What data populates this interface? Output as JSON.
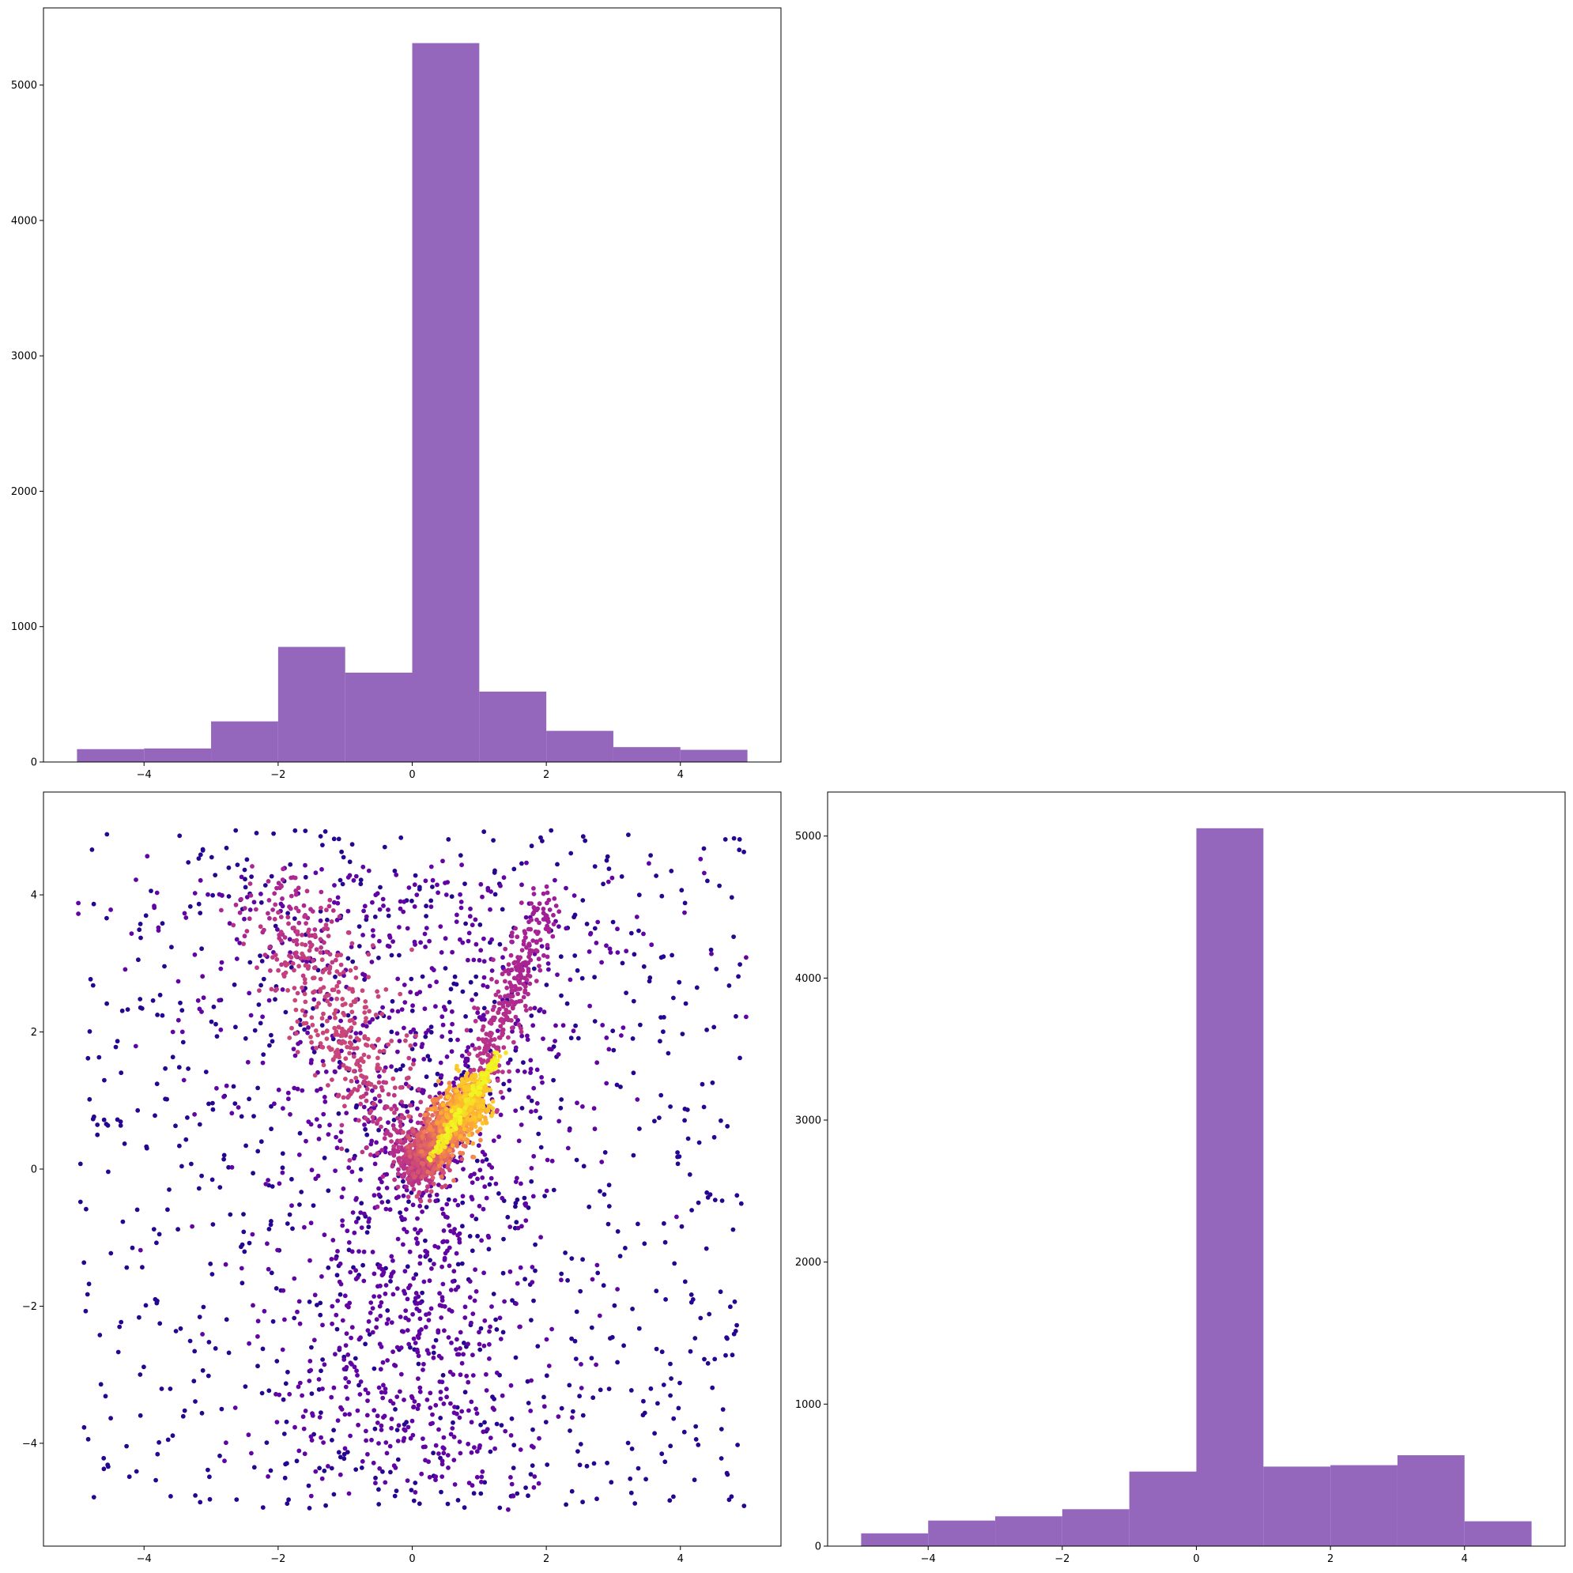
{
  "figure": {
    "bar_color": "#9467bd",
    "scatter_colormap": "plasma"
  },
  "chart_data": [
    {
      "type": "bar",
      "panel": "top-left",
      "bins": [
        [
          -5,
          -4
        ],
        [
          -4,
          -3
        ],
        [
          -3,
          -2
        ],
        [
          -2,
          -1
        ],
        [
          -1,
          0
        ],
        [
          0,
          1
        ],
        [
          1,
          2
        ],
        [
          2,
          3
        ],
        [
          3,
          4
        ],
        [
          4,
          5
        ]
      ],
      "values": [
        95,
        100,
        300,
        850,
        660,
        5310,
        520,
        230,
        110,
        90
      ],
      "xlim": [
        -5.5,
        5.5
      ],
      "ylim": [
        0,
        5570
      ],
      "xticks": [
        -4,
        -2,
        0,
        2,
        4
      ],
      "xtick_labels": [
        "−4",
        "−2",
        "0",
        "2",
        "4"
      ],
      "yticks": [
        0,
        1000,
        2000,
        3000,
        4000,
        5000
      ],
      "ytick_labels": [
        "0",
        "1000",
        "2000",
        "3000",
        "4000",
        "5000"
      ],
      "color": "#9467bd",
      "title": "",
      "xlabel": "",
      "ylabel": ""
    },
    {
      "type": "scatter",
      "panel": "bottom-left",
      "description_counts": {
        "uniform_background": 900,
        "core": 1300,
        "ridge": 180,
        "left_arm": 500,
        "right_arm": 320,
        "halo": 1200
      },
      "xlim": [
        -5.5,
        5.5
      ],
      "ylim": [
        -5.5,
        5.5
      ],
      "xticks": [
        -4,
        -2,
        0,
        2,
        4
      ],
      "xtick_labels": [
        "−4",
        "−2",
        "0",
        "2",
        "4"
      ],
      "yticks": [
        -4,
        -2,
        0,
        2,
        4
      ],
      "ytick_labels": [
        "−4",
        "−2",
        "0",
        "2",
        "4"
      ],
      "colormap": "plasma",
      "title": "",
      "xlabel": "",
      "ylabel": ""
    },
    {
      "type": "bar",
      "panel": "bottom-right",
      "bins": [
        [
          -5,
          -4
        ],
        [
          -4,
          -3
        ],
        [
          -3,
          -2
        ],
        [
          -2,
          -1
        ],
        [
          -1,
          0
        ],
        [
          0,
          1
        ],
        [
          1,
          2
        ],
        [
          2,
          3
        ],
        [
          3,
          4
        ],
        [
          4,
          5
        ]
      ],
      "values": [
        90,
        180,
        210,
        260,
        525,
        5055,
        560,
        570,
        640,
        175
      ],
      "xlim": [
        -5.5,
        5.5
      ],
      "ylim": [
        0,
        5310
      ],
      "xticks": [
        -4,
        -2,
        0,
        2,
        4
      ],
      "xtick_labels": [
        "−4",
        "−2",
        "0",
        "2",
        "4"
      ],
      "yticks": [
        0,
        1000,
        2000,
        3000,
        4000,
        5000
      ],
      "ytick_labels": [
        "0",
        "1000",
        "2000",
        "3000",
        "4000",
        "5000"
      ],
      "color": "#9467bd",
      "title": "",
      "xlabel": "",
      "ylabel": ""
    }
  ]
}
